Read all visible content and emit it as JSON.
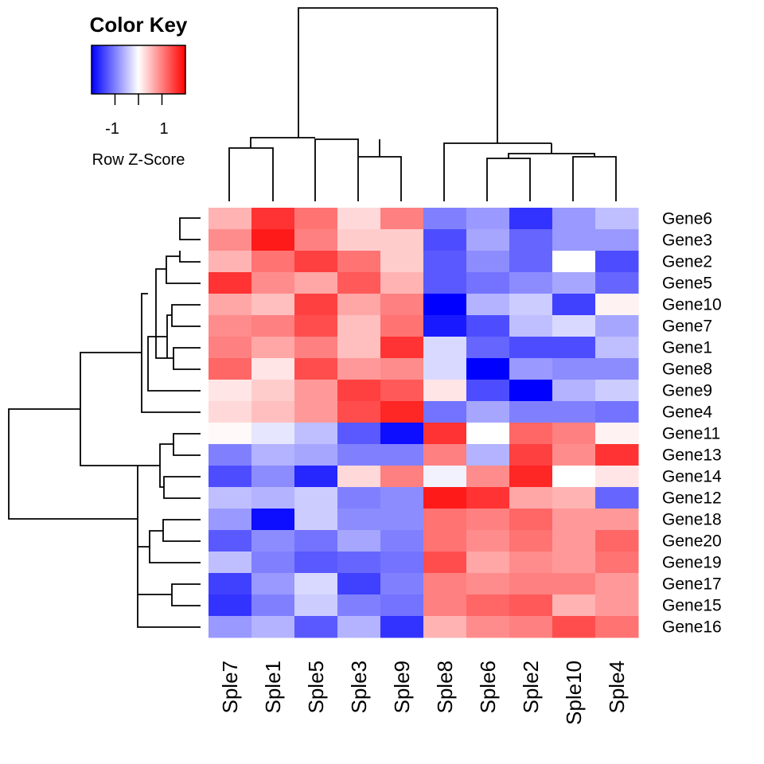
{
  "chart_data": {
    "type": "heatmap",
    "color_key": {
      "title": "Color Key",
      "label": "Row Z-Score",
      "ticks": [
        "-1",
        "1"
      ],
      "tick_values": [
        -1,
        1
      ],
      "range": [
        -2,
        2
      ],
      "low_color": "#0000ff",
      "mid_color": "#ffffff",
      "high_color": "#ff0000"
    },
    "columns": [
      "Sple7",
      "Sple1",
      "Sple5",
      "Sple3",
      "Sple9",
      "Sple8",
      "Sple6",
      "Sple2",
      "Sple10",
      "Sple4"
    ],
    "rows": [
      "Gene6",
      "Gene3",
      "Gene2",
      "Gene5",
      "Gene10",
      "Gene7",
      "Gene1",
      "Gene8",
      "Gene9",
      "Gene4",
      "Gene11",
      "Gene13",
      "Gene14",
      "Gene12",
      "Gene18",
      "Gene20",
      "Gene19",
      "Gene17",
      "Gene15",
      "Gene16"
    ],
    "values": [
      [
        0.6,
        1.6,
        1.1,
        0.3,
        1.0,
        -1.0,
        -0.8,
        -1.6,
        -0.8,
        -0.5
      ],
      [
        0.9,
        1.8,
        1.0,
        0.4,
        0.4,
        -1.4,
        -0.7,
        -1.2,
        -0.8,
        -0.8
      ],
      [
        0.6,
        1.1,
        1.5,
        1.1,
        0.4,
        -1.3,
        -0.9,
        -1.2,
        0.0,
        -1.4
      ],
      [
        1.6,
        0.9,
        0.7,
        1.3,
        0.6,
        -1.3,
        -1.1,
        -0.9,
        -0.7,
        -1.2
      ],
      [
        0.7,
        0.5,
        1.5,
        0.7,
        1.0,
        -2.0,
        -0.6,
        -0.4,
        -1.5,
        0.1
      ],
      [
        0.9,
        1.0,
        1.4,
        0.5,
        1.1,
        -1.8,
        -1.4,
        -0.5,
        -0.3,
        -0.7
      ],
      [
        1.0,
        0.7,
        1.0,
        0.5,
        1.6,
        -0.3,
        -1.2,
        -1.4,
        -1.4,
        -0.5
      ],
      [
        1.2,
        0.2,
        1.4,
        0.8,
        0.9,
        -0.3,
        -2.0,
        -0.8,
        -0.9,
        -0.9
      ],
      [
        0.2,
        0.4,
        0.8,
        1.5,
        1.3,
        0.2,
        -1.4,
        -2.0,
        -0.6,
        -0.4
      ],
      [
        0.3,
        0.5,
        0.8,
        1.4,
        1.7,
        -1.1,
        -0.7,
        -1.0,
        -1.0,
        -1.1
      ],
      [
        0.05,
        -0.2,
        -0.5,
        -1.3,
        -1.9,
        1.6,
        0.0,
        1.2,
        1.0,
        0.1
      ],
      [
        -1.0,
        -0.6,
        -0.7,
        -1.0,
        -1.0,
        1.0,
        -0.6,
        1.5,
        0.9,
        1.6
      ],
      [
        -1.4,
        -0.9,
        -1.7,
        0.3,
        1.0,
        -0.1,
        0.9,
        1.7,
        0.0,
        0.2
      ],
      [
        -0.5,
        -0.6,
        -0.4,
        -1.0,
        -0.9,
        1.8,
        1.6,
        0.7,
        0.6,
        -1.2
      ],
      [
        -0.8,
        -1.9,
        -0.4,
        -0.9,
        -0.9,
        1.1,
        1.0,
        1.2,
        0.8,
        0.8
      ],
      [
        -1.3,
        -0.9,
        -1.1,
        -0.7,
        -1.0,
        1.1,
        0.9,
        1.1,
        0.8,
        1.2
      ],
      [
        -0.5,
        -1.0,
        -1.3,
        -1.2,
        -1.1,
        1.4,
        0.7,
        0.9,
        0.8,
        1.1
      ],
      [
        -1.5,
        -0.8,
        -0.3,
        -1.5,
        -1.0,
        1.0,
        0.9,
        1.0,
        1.0,
        0.8
      ],
      [
        -1.6,
        -1.0,
        -0.4,
        -1.0,
        -1.1,
        1.0,
        1.2,
        1.3,
        0.6,
        0.8
      ],
      [
        -0.8,
        -0.6,
        -1.3,
        -0.6,
        -1.6,
        0.6,
        0.9,
        1.0,
        1.4,
        1.1
      ]
    ]
  }
}
